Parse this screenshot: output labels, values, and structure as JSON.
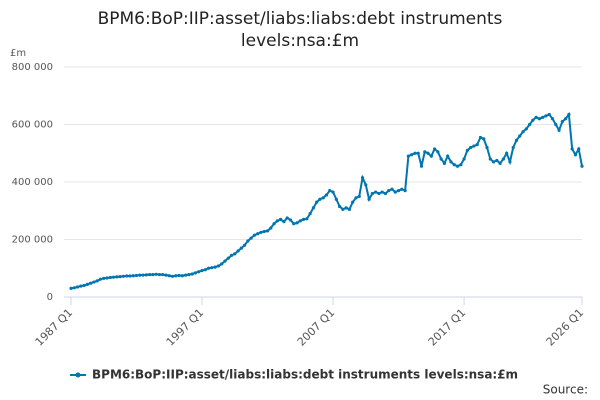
{
  "chart_data": {
    "type": "line",
    "title": "BPM6:BoP:IIP:asset/liabs:liabs:debt instruments levels:nsa:£m",
    "y_label": "£m",
    "source": "Source:",
    "grid": true,
    "legend": "bottom",
    "ylim": [
      0,
      800000
    ],
    "yticks": [
      0,
      {
        "value": 200000,
        "label": "200 000"
      },
      {
        "value": 400000,
        "label": "400 000"
      },
      {
        "value": 600000,
        "label": "600 000"
      },
      {
        "value": 800000,
        "label": "800 000"
      }
    ],
    "categories": [
      "1987 Q1",
      null,
      null,
      null,
      null,
      null,
      null,
      null,
      null,
      null,
      null,
      null,
      null,
      null,
      null,
      null,
      null,
      null,
      null,
      null,
      null,
      null,
      null,
      null,
      null,
      null,
      null,
      null,
      null,
      null,
      null,
      null,
      null,
      null,
      null,
      null,
      null,
      null,
      null,
      null,
      "1997 Q1",
      null,
      null,
      null,
      null,
      null,
      null,
      null,
      null,
      null,
      null,
      null,
      null,
      null,
      null,
      null,
      null,
      null,
      null,
      null,
      null,
      null,
      null,
      null,
      null,
      null,
      null,
      null,
      null,
      null,
      null,
      null,
      null,
      null,
      null,
      null,
      null,
      null,
      null,
      null,
      "2007 Q1",
      null,
      null,
      null,
      null,
      null,
      null,
      null,
      null,
      null,
      null,
      null,
      null,
      null,
      null,
      null,
      null,
      null,
      null,
      null,
      null,
      null,
      null,
      null,
      null,
      null,
      null,
      null,
      null,
      null,
      null,
      null,
      null,
      null,
      null,
      null,
      null,
      null,
      null,
      null,
      "2017 Q1",
      null,
      null,
      null,
      null,
      null,
      null,
      null,
      null,
      null,
      null,
      null,
      null,
      null,
      null,
      null,
      null,
      null,
      null,
      null,
      null,
      null,
      null,
      null,
      null,
      null,
      null,
      null,
      null,
      null,
      null,
      null,
      null,
      null,
      null,
      null,
      "2026 Q1"
    ],
    "series": [
      {
        "name": "BPM6:BoP:IIP:asset/liabs:liabs:debt instruments levels:nsa:£m",
        "color": "#0075b0",
        "values": [
          30000,
          32000,
          35000,
          38000,
          40000,
          44000,
          48000,
          52000,
          56000,
          62000,
          65000,
          66000,
          68000,
          69000,
          70000,
          71000,
          72000,
          73000,
          73000,
          74000,
          75000,
          76000,
          76000,
          77000,
          78000,
          78000,
          79000,
          78000,
          78000,
          76000,
          74000,
          72000,
          74000,
          75000,
          74000,
          76000,
          78000,
          80000,
          84000,
          88000,
          92000,
          95000,
          100000,
          102000,
          104000,
          108000,
          115000,
          125000,
          135000,
          145000,
          150000,
          160000,
          170000,
          180000,
          195000,
          205000,
          215000,
          220000,
          225000,
          228000,
          230000,
          240000,
          255000,
          265000,
          270000,
          262000,
          275000,
          268000,
          255000,
          258000,
          265000,
          270000,
          272000,
          290000,
          310000,
          330000,
          340000,
          345000,
          355000,
          370000,
          365000,
          340000,
          315000,
          305000,
          310000,
          305000,
          330000,
          345000,
          350000,
          415000,
          390000,
          340000,
          360000,
          365000,
          360000,
          365000,
          360000,
          370000,
          375000,
          365000,
          370000,
          375000,
          370000,
          490000,
          495000,
          500000,
          500000,
          455000,
          505000,
          500000,
          490000,
          515000,
          505000,
          480000,
          465000,
          490000,
          470000,
          460000,
          455000,
          460000,
          480000,
          510000,
          520000,
          525000,
          530000,
          555000,
          550000,
          520000,
          480000,
          470000,
          475000,
          465000,
          480000,
          500000,
          470000,
          520000,
          545000,
          560000,
          575000,
          585000,
          600000,
          615000,
          625000,
          620000,
          625000,
          630000,
          635000,
          620000,
          600000,
          580000,
          610000,
          620000,
          635000,
          515000,
          495000,
          515000,
          455000
        ]
      }
    ]
  }
}
